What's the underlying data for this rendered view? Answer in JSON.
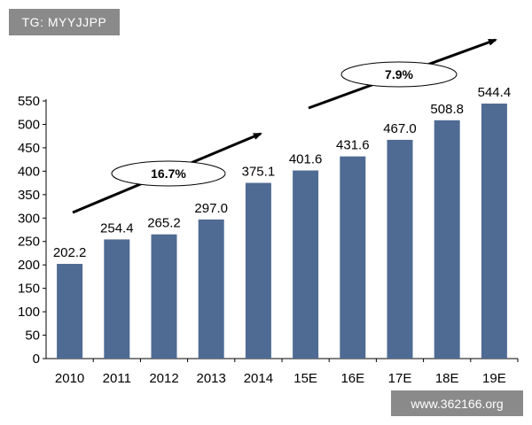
{
  "watermark_top": "TG: MYYJJPP",
  "watermark_bottom": "www.362166.org",
  "chart_data": {
    "type": "bar",
    "categories": [
      "2010",
      "2011",
      "2012",
      "2013",
      "2014",
      "15E",
      "16E",
      "17E",
      "18E",
      "19E"
    ],
    "values": [
      202.2,
      254.4,
      265.2,
      297.0,
      375.1,
      401.6,
      431.6,
      467.0,
      508.8,
      544.4
    ],
    "value_labels": [
      "202.2",
      "254.4",
      "265.2",
      "297.0",
      "375.1",
      "401.6",
      "431.6",
      "467.0",
      "508.8",
      "544.4"
    ],
    "y_ticks": [
      "0",
      "50",
      "100",
      "150",
      "200",
      "250",
      "300",
      "350",
      "400",
      "450",
      "500",
      "550"
    ],
    "ylim": [
      0,
      550
    ],
    "bar_color": "#4f6b94",
    "annotations": [
      "16.7%",
      "7.9%"
    ],
    "grid": false
  }
}
